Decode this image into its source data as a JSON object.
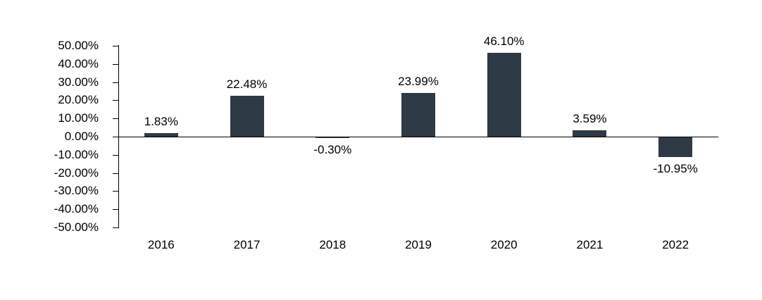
{
  "chart_data": {
    "type": "bar",
    "title": "",
    "xlabel": "",
    "ylabel": "",
    "categories": [
      "2016",
      "2017",
      "2018",
      "2019",
      "2020",
      "2021",
      "2022"
    ],
    "values": [
      1.83,
      22.48,
      -0.3,
      23.99,
      46.1,
      3.59,
      -10.95
    ],
    "value_labels": [
      "1.83%",
      "22.48%",
      "-0.30%",
      "23.99%",
      "46.10%",
      "3.59%",
      "-10.95%"
    ],
    "ylim": [
      -50,
      50
    ],
    "y_ticks": [
      {
        "value": 50,
        "label": "50.00%"
      },
      {
        "value": 40,
        "label": "40.00%"
      },
      {
        "value": 30,
        "label": "30.00%"
      },
      {
        "value": 20,
        "label": "20.00%"
      },
      {
        "value": 10,
        "label": "10.00%"
      },
      {
        "value": 0,
        "label": "0.00%"
      },
      {
        "value": -10,
        "label": "-10.00%"
      },
      {
        "value": -20,
        "label": "-20.00%"
      },
      {
        "value": -30,
        "label": "-30.00%"
      },
      {
        "value": -40,
        "label": "-40.00%"
      },
      {
        "value": -50,
        "label": "-50.00%"
      }
    ],
    "bar_color": "#2e3a46",
    "axis_color": "#000000",
    "grid": false,
    "legend": "none"
  }
}
